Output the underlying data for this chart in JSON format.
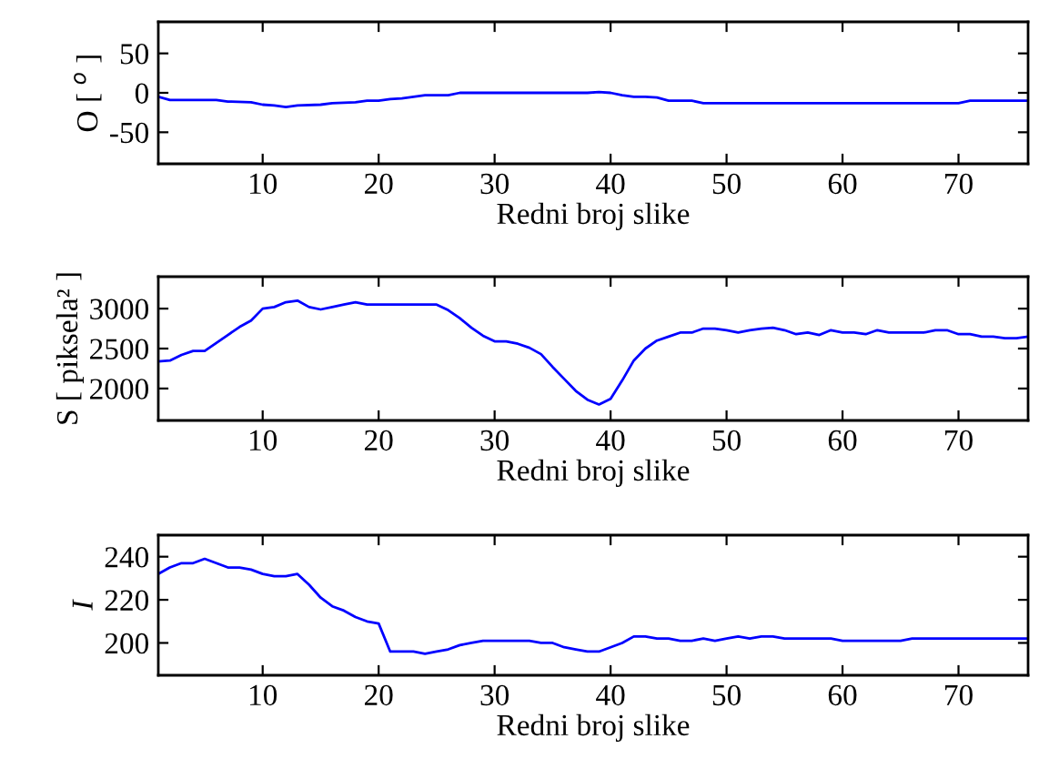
{
  "chart_data": [
    {
      "type": "line",
      "xlabel": "Redni broj slike",
      "ylabel": "O [ $^{o}$ ]",
      "xlim": [
        1,
        76
      ],
      "xticks": [
        10,
        20,
        30,
        40,
        50,
        60,
        70
      ],
      "ylim": [
        -90,
        90
      ],
      "yticks": [
        -50,
        0,
        50
      ],
      "grid": false,
      "legend": false,
      "series": [
        {
          "color": "#0000ff",
          "x": [
            1,
            2,
            6,
            7,
            9,
            10,
            11,
            12,
            13,
            15,
            16,
            18,
            19,
            20,
            21,
            22,
            23,
            24,
            26,
            27,
            38,
            39,
            40,
            41,
            42,
            43,
            44,
            45,
            47,
            48,
            70,
            71,
            76
          ],
          "values": [
            -5,
            -9,
            -9,
            -11,
            -12,
            -15,
            -16,
            -18,
            -16,
            -15,
            -13,
            -12,
            -10,
            -10,
            -8,
            -7,
            -5,
            -3,
            -3,
            0,
            0,
            1,
            0,
            -3,
            -5,
            -5,
            -6,
            -10,
            -10,
            -13,
            -13,
            -10,
            -10
          ]
        }
      ]
    },
    {
      "type": "line",
      "xlabel": "Redni broj slike",
      "ylabel": "S [ piksela² ]",
      "xlim": [
        1,
        76
      ],
      "xticks": [
        10,
        20,
        30,
        40,
        50,
        60,
        70
      ],
      "ylim": [
        1600,
        3400
      ],
      "yticks": [
        2000,
        2500,
        3000
      ],
      "grid": false,
      "legend": false,
      "series": [
        {
          "color": "#0000ff",
          "x": [
            1,
            2,
            3,
            4,
            5,
            6,
            7,
            8,
            9,
            10,
            11,
            12,
            13,
            14,
            15,
            16,
            17,
            18,
            19,
            25,
            26,
            27,
            28,
            29,
            30,
            31,
            32,
            33,
            34,
            35,
            36,
            37,
            38,
            39,
            40,
            41,
            42,
            43,
            44,
            45,
            46,
            47,
            48,
            49,
            50,
            51,
            52,
            53,
            54,
            55,
            56,
            57,
            58,
            59,
            60,
            61,
            62,
            63,
            64,
            67,
            68,
            69,
            70,
            71,
            72,
            73,
            74,
            75,
            76
          ],
          "values": [
            2340,
            2350,
            2420,
            2470,
            2470,
            2570,
            2670,
            2770,
            2850,
            3000,
            3020,
            3080,
            3100,
            3020,
            2990,
            3020,
            3050,
            3080,
            3050,
            3050,
            2980,
            2880,
            2760,
            2660,
            2590,
            2590,
            2560,
            2510,
            2430,
            2270,
            2120,
            1970,
            1860,
            1800,
            1870,
            2100,
            2350,
            2500,
            2600,
            2650,
            2700,
            2700,
            2750,
            2750,
            2730,
            2700,
            2730,
            2750,
            2760,
            2730,
            2680,
            2700,
            2670,
            2730,
            2700,
            2700,
            2680,
            2730,
            2700,
            2700,
            2730,
            2730,
            2680,
            2680,
            2650,
            2650,
            2630,
            2630,
            2650
          ]
        }
      ]
    },
    {
      "type": "line",
      "xlabel": "Redni broj slike",
      "ylabel": "I",
      "xlim": [
        1,
        76
      ],
      "xticks": [
        10,
        20,
        30,
        40,
        50,
        60,
        70
      ],
      "ylim": [
        185,
        250
      ],
      "yticks": [
        200,
        220,
        240
      ],
      "grid": false,
      "legend": false,
      "series": [
        {
          "color": "#0000ff",
          "x": [
            1,
            2,
            3,
            4,
            5,
            6,
            7,
            8,
            9,
            10,
            11,
            12,
            13,
            14,
            15,
            16,
            17,
            18,
            19,
            20,
            21,
            23,
            24,
            25,
            26,
            27,
            28,
            29,
            33,
            34,
            35,
            36,
            37,
            38,
            39,
            40,
            41,
            42,
            43,
            44,
            45,
            46,
            47,
            48,
            49,
            50,
            51,
            52,
            53,
            54,
            55,
            59,
            60,
            65,
            66,
            76
          ],
          "values": [
            232,
            235,
            237,
            237,
            239,
            237,
            235,
            235,
            234,
            232,
            231,
            231,
            232,
            227,
            221,
            217,
            215,
            212,
            210,
            209,
            196,
            196,
            195,
            196,
            197,
            199,
            200,
            201,
            201,
            200,
            200,
            198,
            197,
            196,
            196,
            198,
            200,
            203,
            203,
            202,
            202,
            201,
            201,
            202,
            201,
            202,
            203,
            202,
            203,
            203,
            202,
            202,
            201,
            201,
            202,
            202
          ]
        }
      ]
    }
  ]
}
